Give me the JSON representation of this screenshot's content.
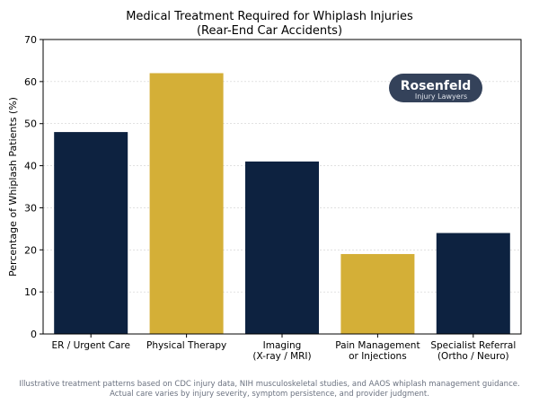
{
  "chart_data": {
    "type": "bar",
    "title": "Medical Treatment Required for Whiplash Injuries",
    "subtitle": "(Rear-End Car Accidents)",
    "xlabel": "",
    "ylabel": "Percentage of Whiplash Patients (%)",
    "ylim": [
      0,
      70
    ],
    "yticks": [
      0,
      10,
      20,
      30,
      40,
      50,
      60,
      70
    ],
    "grid": true,
    "categories": [
      [
        "ER / Urgent Care"
      ],
      [
        "Physical Therapy"
      ],
      [
        "Imaging",
        "(X-ray / MRI)"
      ],
      [
        "Pain Management",
        "or Injections"
      ],
      [
        "Specialist Referral",
        "(Ortho / Neuro)"
      ]
    ],
    "values": [
      48,
      62,
      41,
      19,
      24
    ],
    "bar_colors": [
      "#0d2240",
      "#d4af37",
      "#0d2240",
      "#d4af37",
      "#0d2240"
    ]
  },
  "logo": {
    "name": "Rosenfeld",
    "tagline": "Injury Lawyers",
    "color": "#34425a"
  },
  "footnote": [
    "Illustrative treatment patterns based on CDC injury data, NIH musculoskeletal studies, and AAOS whiplash management guidance.",
    "Actual care varies by injury severity, symptom persistence, and provider judgment."
  ]
}
